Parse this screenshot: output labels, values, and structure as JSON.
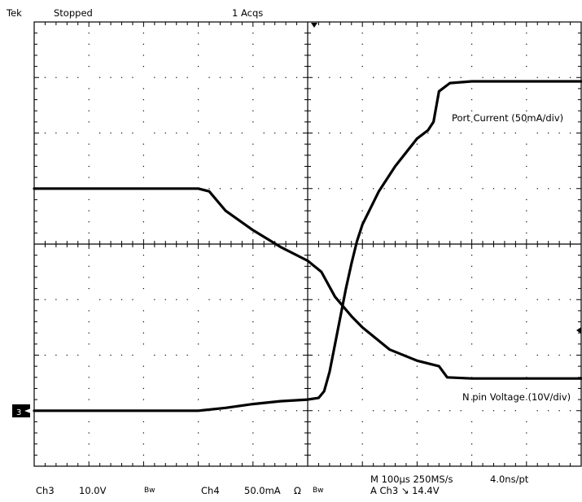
{
  "header": {
    "brand": "Tek",
    "state": "Stopped",
    "acqs": "1 Acqs"
  },
  "footer": {
    "ch3": "Ch3",
    "ch3_scale": "10.0V",
    "bw1": "Bw",
    "ch4": "Ch4",
    "ch4_scale": "50.0mA",
    "ohm": "Ω",
    "bw2": "Bw",
    "timebase": "M 100µs 250MS/s",
    "resolution": "4.0ns/pt",
    "trigger": "A  Ch3  ↘  14.4V"
  },
  "chart_data": {
    "type": "line",
    "x_unit": "µs from trigger",
    "x_range": [
      -500,
      500
    ],
    "y_unit": "div",
    "y_range": [
      -4,
      4
    ],
    "grid": true,
    "series": [
      {
        "name": "Port Current (50mA/div)",
        "points": [
          [
            -500,
            -3.0
          ],
          [
            -200,
            -3.0
          ],
          [
            -150,
            -2.95
          ],
          [
            -100,
            -2.88
          ],
          [
            -50,
            -2.83
          ],
          [
            0,
            -2.8
          ],
          [
            20,
            -2.77
          ],
          [
            30,
            -2.65
          ],
          [
            40,
            -2.3
          ],
          [
            50,
            -1.8
          ],
          [
            60,
            -1.3
          ],
          [
            70,
            -0.8
          ],
          [
            80,
            -0.35
          ],
          [
            90,
            0.05
          ],
          [
            100,
            0.35
          ],
          [
            130,
            0.95
          ],
          [
            160,
            1.4
          ],
          [
            200,
            1.9
          ],
          [
            220,
            2.05
          ],
          [
            230,
            2.2
          ],
          [
            240,
            2.75
          ],
          [
            260,
            2.9
          ],
          [
            300,
            2.93
          ],
          [
            500,
            2.93
          ]
        ]
      },
      {
        "name": "N pin Voltage (10V/div)",
        "points": [
          [
            -500,
            1.0
          ],
          [
            -200,
            1.0
          ],
          [
            -180,
            0.95
          ],
          [
            -150,
            0.6
          ],
          [
            -100,
            0.25
          ],
          [
            -50,
            -0.05
          ],
          [
            0,
            -0.3
          ],
          [
            25,
            -0.5
          ],
          [
            50,
            -0.95
          ],
          [
            80,
            -1.3
          ],
          [
            100,
            -1.5
          ],
          [
            150,
            -1.9
          ],
          [
            200,
            -2.1
          ],
          [
            240,
            -2.2
          ],
          [
            255,
            -2.4
          ],
          [
            300,
            -2.42
          ],
          [
            500,
            -2.42
          ]
        ]
      }
    ]
  }
}
